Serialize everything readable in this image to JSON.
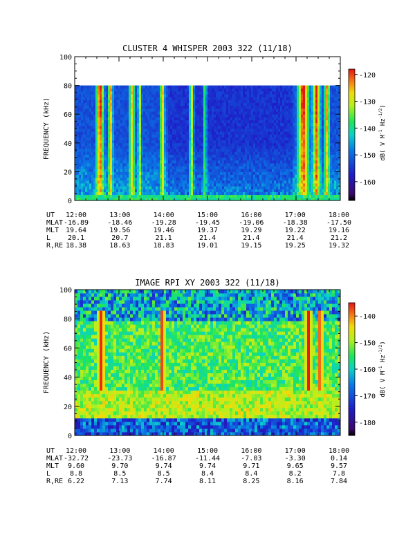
{
  "chart_data": [
    {
      "type": "heatmap",
      "title": "CLUSTER 4 WHISPER 2003 322 (11/18)",
      "ylabel": "FREQUENCY (kHz)",
      "ylim": [
        0,
        100
      ],
      "yticks": [
        "0",
        "20",
        "40",
        "60",
        "80",
        "100"
      ],
      "xlim": [
        "12:00",
        "18:00"
      ],
      "data_band_khz": [
        0,
        80
      ],
      "colorbar": {
        "label": "dB( V M⁻¹ Hz⁻¹ᐟ²)",
        "label_main": "dB( V M",
        "label_sup1": "-1",
        "label_mid": " Hz",
        "label_sup2": "-1/2",
        "label_end": ")",
        "range": [
          -167,
          -118
        ],
        "ticks": [
          "-120",
          "-130",
          "-140",
          "-150",
          "-160"
        ]
      },
      "ephemeris": {
        "row_labels": [
          "UT",
          "MLAT",
          "MLT",
          "L",
          "R,RE"
        ],
        "columns": [
          {
            "UT": "12:00",
            "MLAT": "-16.89",
            "MLT": "19.64",
            "L": "20.1",
            "R,RE": "18.38"
          },
          {
            "UT": "13:00",
            "MLAT": "-18.46",
            "MLT": "19.56",
            "L": "20.7",
            "R,RE": "18.63"
          },
          {
            "UT": "14:00",
            "MLAT": "-19.28",
            "MLT": "19.46",
            "L": "21.1",
            "R,RE": "18.83"
          },
          {
            "UT": "15:00",
            "MLAT": "-19.45",
            "MLT": "19.37",
            "L": "21.4",
            "R,RE": "19.01"
          },
          {
            "UT": "16:00",
            "MLAT": "-19.06",
            "MLT": "19.29",
            "L": "21.4",
            "R,RE": "19.15"
          },
          {
            "UT": "17:00",
            "MLAT": "-18.38",
            "MLT": "19.22",
            "L": "21.4",
            "R,RE": "19.25"
          },
          {
            "UT": "18:00",
            "MLAT": "-17.50",
            "MLT": "19.16",
            "L": "21.2",
            "R,RE": "19.32"
          }
        ]
      }
    },
    {
      "type": "heatmap",
      "title": "IMAGE RPI XY 2003 322 (11/18)",
      "ylabel": "FREQUENCY (kHz)",
      "ylim": [
        0,
        100
      ],
      "yticks": [
        "0",
        "20",
        "40",
        "60",
        "80",
        "100"
      ],
      "xlim": [
        "12:00",
        "18:00"
      ],
      "data_band_khz": [
        0,
        100
      ],
      "colorbar": {
        "label_main": "dB( V M",
        "label_sup1": "-1",
        "label_mid": " Hz",
        "label_sup2": "-1/2",
        "label_end": ")",
        "range": [
          -185,
          -135
        ],
        "ticks": [
          "-140",
          "-150",
          "-160",
          "-170",
          "-180"
        ]
      },
      "ephemeris": {
        "row_labels": [
          "UT",
          "MLAT",
          "MLT",
          "L",
          "R,RE"
        ],
        "columns": [
          {
            "UT": "12:00",
            "MLAT": "-32.72",
            "MLT": "9.60",
            "L": "8.8",
            "R,RE": "6.22"
          },
          {
            "UT": "13:00",
            "MLAT": "-23.73",
            "MLT": "9.70",
            "L": "8.5",
            "R,RE": "7.13"
          },
          {
            "UT": "14:00",
            "MLAT": "-16.87",
            "MLT": "9.74",
            "L": "8.5",
            "R,RE": "7.74"
          },
          {
            "UT": "15:00",
            "MLAT": "-11.44",
            "MLT": "9.74",
            "L": "8.4",
            "R,RE": "8.11"
          },
          {
            "UT": "16:00",
            "MLAT": "-7.03",
            "MLT": "9.71",
            "L": "8.4",
            "R,RE": "8.25"
          },
          {
            "UT": "17:00",
            "MLAT": "-3.30",
            "MLT": "9.65",
            "L": "8.2",
            "R,RE": "8.16"
          },
          {
            "UT": "18:00",
            "MLAT": "0.14",
            "MLT": "9.57",
            "L": "7.8",
            "R,RE": "7.84"
          }
        ]
      }
    }
  ]
}
